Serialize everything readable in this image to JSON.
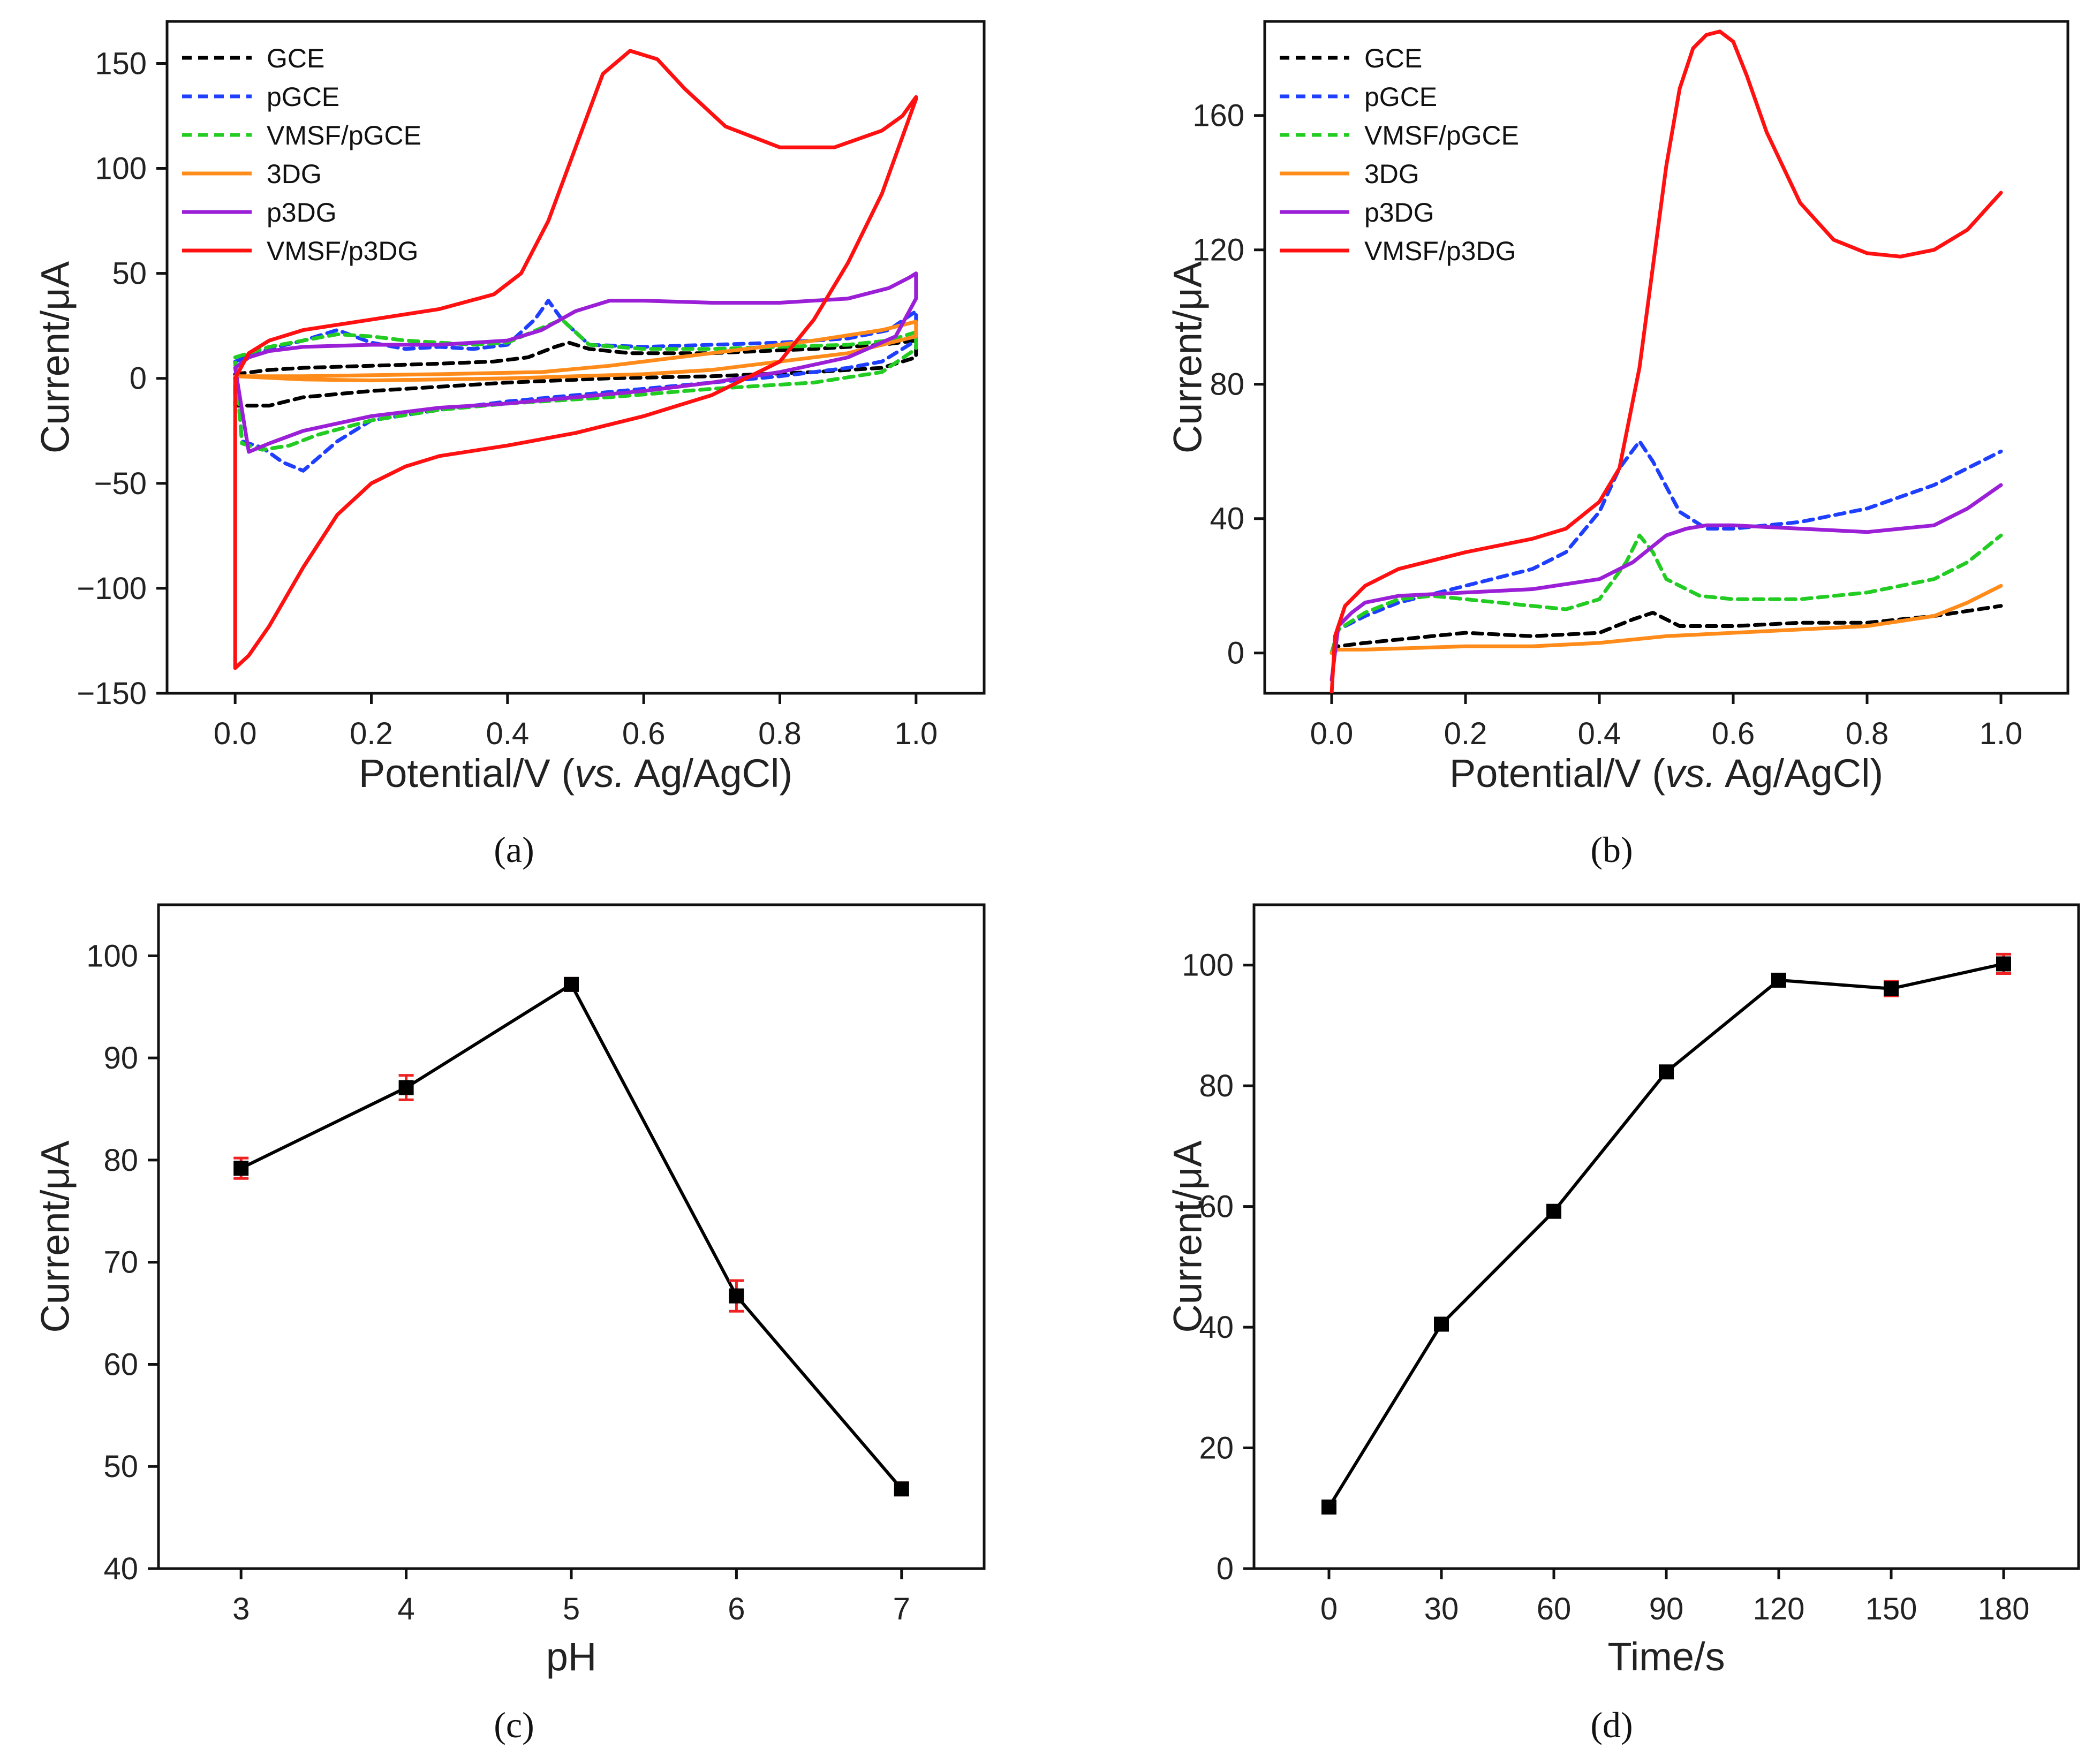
{
  "colors": {
    "GCE": "#000000",
    "pGCE": "#1f3fff",
    "VMSF/pGCE": "#22cc22",
    "3DG": "#ff8c1a",
    "p3DG": "#9a1fd6",
    "VMSF/p3DG": "#ff1111",
    "errbar": "#ee2222",
    "marker": "#000000"
  },
  "chart_data": [
    {
      "id": "a",
      "type": "line",
      "caption": "(a)",
      "xlabel_main": "Potential/V (",
      "xlabel_italic": "vs.",
      "xlabel_tail": " Ag/AgCl)",
      "ylabel": "Current/μA",
      "xlim": [
        -0.1,
        1.1
      ],
      "ylim": [
        -150,
        170
      ],
      "xticks": [
        {
          "v": 0,
          "label": "0.0"
        },
        {
          "v": 0.2,
          "label": "0.2"
        },
        {
          "v": 0.4,
          "label": "0.4"
        },
        {
          "v": 0.6,
          "label": "0.6"
        },
        {
          "v": 0.8,
          "label": "0.8"
        },
        {
          "v": 1,
          "label": "1.0"
        }
      ],
      "yticks": [
        {
          "v": -150,
          "label": "−150"
        },
        {
          "v": -100,
          "label": "−100"
        },
        {
          "v": -50,
          "label": "−50"
        },
        {
          "v": 0,
          "label": "0"
        },
        {
          "v": 50,
          "label": "50"
        },
        {
          "v": 100,
          "label": "100"
        },
        {
          "v": 150,
          "label": "150"
        }
      ],
      "legend_position": "top-left",
      "series": [
        {
          "name": "GCE",
          "dashed": true,
          "x": [
            0,
            0.05,
            0.1,
            0.2,
            0.3,
            0.38,
            0.43,
            0.47,
            0.49,
            0.52,
            0.58,
            0.7,
            0.85,
            0.95,
            1.0,
            1.0,
            0.95,
            0.85,
            0.7,
            0.55,
            0.4,
            0.3,
            0.2,
            0.1,
            0.05,
            0.0,
            0
          ],
          "y": [
            2,
            4,
            5,
            6,
            7,
            8,
            10,
            15,
            17,
            14,
            12,
            12,
            14,
            16,
            18,
            10,
            5,
            3,
            1,
            0,
            -2,
            -4,
            -6,
            -9,
            -13,
            -13,
            2
          ]
        },
        {
          "name": "pGCE",
          "dashed": true,
          "x": [
            0,
            0.05,
            0.1,
            0.15,
            0.2,
            0.25,
            0.3,
            0.35,
            0.4,
            0.44,
            0.46,
            0.48,
            0.52,
            0.6,
            0.7,
            0.8,
            0.9,
            0.96,
            1.0,
            1.0,
            0.95,
            0.9,
            0.8,
            0.7,
            0.6,
            0.5,
            0.4,
            0.3,
            0.2,
            0.15,
            0.1,
            0.07,
            0.04,
            0.01,
            0
          ],
          "y": [
            8,
            14,
            18,
            23,
            17,
            14,
            15,
            14,
            16,
            28,
            37,
            28,
            16,
            15,
            16,
            17,
            19,
            23,
            32,
            18,
            8,
            5,
            1,
            -2,
            -5,
            -8,
            -11,
            -15,
            -20,
            -30,
            -44,
            -40,
            -33,
            -30,
            8
          ]
        },
        {
          "name": "VMSF/pGCE",
          "dashed": true,
          "x": [
            0,
            0.05,
            0.1,
            0.15,
            0.2,
            0.25,
            0.3,
            0.35,
            0.4,
            0.45,
            0.48,
            0.52,
            0.6,
            0.7,
            0.8,
            0.9,
            0.96,
            1.0,
            1.0,
            0.95,
            0.85,
            0.7,
            0.55,
            0.4,
            0.3,
            0.2,
            0.12,
            0.08,
            0.04,
            0.01,
            0
          ],
          "y": [
            10,
            15,
            18,
            21,
            20,
            18,
            17,
            16,
            17,
            24,
            28,
            16,
            14,
            14,
            15,
            16,
            18,
            22,
            14,
            3,
            -2,
            -5,
            -9,
            -12,
            -15,
            -20,
            -27,
            -32,
            -34,
            -31,
            10
          ]
        },
        {
          "name": "3DG",
          "dashed": false,
          "x": [
            0,
            0.1,
            0.3,
            0.45,
            0.55,
            0.65,
            0.75,
            0.85,
            0.95,
            1.0,
            1.0,
            0.9,
            0.8,
            0.7,
            0.6,
            0.5,
            0.4,
            0.3,
            0.2,
            0.1,
            0
          ],
          "y": [
            1,
            1,
            2,
            3,
            6,
            10,
            14,
            18,
            23,
            27,
            20,
            12,
            8,
            4,
            2,
            1,
            0,
            -0.5,
            -1,
            -0.5,
            1
          ]
        },
        {
          "name": "p3DG",
          "dashed": false,
          "x": [
            0,
            0.02,
            0.05,
            0.1,
            0.2,
            0.3,
            0.4,
            0.45,
            0.5,
            0.55,
            0.6,
            0.7,
            0.8,
            0.9,
            0.96,
            0.99,
            1.0,
            1.0,
            0.97,
            0.9,
            0.8,
            0.7,
            0.6,
            0.5,
            0.4,
            0.3,
            0.2,
            0.1,
            0.05,
            0.02,
            0
          ],
          "y": [
            5,
            10,
            13,
            15,
            16,
            16,
            18,
            23,
            32,
            37,
            37,
            36,
            36,
            38,
            43,
            48,
            50,
            38,
            20,
            10,
            3,
            -2,
            -6,
            -9,
            -12,
            -14,
            -18,
            -25,
            -31,
            -35,
            5
          ]
        },
        {
          "name": "VMSF/p3DG",
          "dashed": false,
          "x": [
            0,
            0.02,
            0.05,
            0.1,
            0.2,
            0.3,
            0.38,
            0.42,
            0.46,
            0.5,
            0.54,
            0.58,
            0.62,
            0.66,
            0.72,
            0.8,
            0.88,
            0.95,
            0.98,
            1.0,
            1.0,
            0.95,
            0.9,
            0.85,
            0.8,
            0.7,
            0.6,
            0.5,
            0.4,
            0.3,
            0.25,
            0.2,
            0.15,
            0.1,
            0.05,
            0.02,
            0.0,
            0
          ],
          "y": [
            0,
            12,
            18,
            23,
            28,
            33,
            40,
            50,
            75,
            110,
            145,
            156,
            152,
            138,
            120,
            110,
            110,
            118,
            125,
            134,
            133,
            88,
            55,
            28,
            8,
            -8,
            -18,
            -26,
            -32,
            -37,
            -42,
            -50,
            -65,
            -90,
            -118,
            -132,
            -138,
            0
          ]
        }
      ]
    },
    {
      "id": "b",
      "type": "line",
      "caption": "(b)",
      "xlabel_main": "Potential/V (",
      "xlabel_italic": "vs.",
      "xlabel_tail": " Ag/AgCl)",
      "ylabel": "Current/μA",
      "xlim": [
        -0.1,
        1.1
      ],
      "ylim": [
        -12,
        188
      ],
      "xticks": [
        {
          "v": 0,
          "label": "0.0"
        },
        {
          "v": 0.2,
          "label": "0.2"
        },
        {
          "v": 0.4,
          "label": "0.4"
        },
        {
          "v": 0.6,
          "label": "0.6"
        },
        {
          "v": 0.8,
          "label": "0.8"
        },
        {
          "v": 1,
          "label": "1.0"
        }
      ],
      "yticks": [
        {
          "v": 0,
          "label": "0"
        },
        {
          "v": 40,
          "label": "40"
        },
        {
          "v": 80,
          "label": "80"
        },
        {
          "v": 120,
          "label": "120"
        },
        {
          "v": 160,
          "label": "160"
        }
      ],
      "legend_position": "top-left",
      "series": [
        {
          "name": "GCE",
          "dashed": true,
          "x": [
            0,
            0.01,
            0.05,
            0.1,
            0.2,
            0.3,
            0.4,
            0.45,
            0.48,
            0.52,
            0.6,
            0.7,
            0.8,
            0.9,
            1.0
          ],
          "y": [
            0,
            2,
            3,
            4,
            6,
            5,
            6,
            10,
            12,
            8,
            8,
            9,
            9,
            11,
            14
          ]
        },
        {
          "name": "pGCE",
          "dashed": true,
          "x": [
            0,
            0.01,
            0.05,
            0.1,
            0.2,
            0.3,
            0.35,
            0.4,
            0.43,
            0.46,
            0.48,
            0.52,
            0.56,
            0.6,
            0.7,
            0.8,
            0.9,
            1.0
          ],
          "y": [
            0,
            7,
            11,
            15,
            20,
            25,
            30,
            42,
            55,
            63,
            57,
            42,
            37,
            37,
            39,
            43,
            50,
            60
          ]
        },
        {
          "name": "VMSF/pGCE",
          "dashed": true,
          "x": [
            0,
            0.01,
            0.05,
            0.1,
            0.15,
            0.2,
            0.3,
            0.35,
            0.4,
            0.44,
            0.46,
            0.48,
            0.5,
            0.55,
            0.6,
            0.7,
            0.8,
            0.9,
            0.95,
            1.0
          ],
          "y": [
            0,
            7,
            12,
            16,
            17,
            16,
            14,
            13,
            16,
            27,
            35,
            30,
            22,
            17,
            16,
            16,
            18,
            22,
            27,
            35
          ]
        },
        {
          "name": "3DG",
          "dashed": false,
          "x": [
            0,
            0.01,
            0.05,
            0.2,
            0.3,
            0.4,
            0.45,
            0.5,
            0.6,
            0.7,
            0.8,
            0.9,
            0.95,
            1.0
          ],
          "y": [
            0,
            1,
            1,
            2,
            2,
            3,
            4,
            5,
            6,
            7,
            8,
            11,
            15,
            20
          ]
        },
        {
          "name": "p3DG",
          "dashed": false,
          "x": [
            0,
            0.01,
            0.03,
            0.05,
            0.1,
            0.2,
            0.3,
            0.4,
            0.45,
            0.5,
            0.53,
            0.56,
            0.6,
            0.7,
            0.8,
            0.9,
            0.95,
            1.0
          ],
          "y": [
            -8,
            8,
            12,
            15,
            17,
            18,
            19,
            22,
            27,
            35,
            37,
            38,
            38,
            37,
            36,
            38,
            43,
            50
          ]
        },
        {
          "name": "VMSF/p3DG",
          "dashed": false,
          "x": [
            0,
            0.005,
            0.02,
            0.05,
            0.1,
            0.2,
            0.3,
            0.35,
            0.4,
            0.43,
            0.46,
            0.48,
            0.5,
            0.52,
            0.54,
            0.56,
            0.58,
            0.6,
            0.62,
            0.65,
            0.7,
            0.75,
            0.8,
            0.85,
            0.9,
            0.95,
            1.0
          ],
          "y": [
            -12,
            5,
            14,
            20,
            25,
            30,
            34,
            37,
            45,
            55,
            85,
            115,
            145,
            168,
            180,
            184,
            185,
            182,
            172,
            155,
            134,
            123,
            119,
            118,
            120,
            126,
            137
          ]
        }
      ]
    },
    {
      "id": "c",
      "type": "line",
      "caption": "(c)",
      "xlabel": "pH",
      "ylabel": "Current/μA",
      "xlim": [
        2.5,
        7.5
      ],
      "ylim": [
        40,
        105
      ],
      "xticks": [
        {
          "v": 3,
          "label": "3"
        },
        {
          "v": 4,
          "label": "4"
        },
        {
          "v": 5,
          "label": "5"
        },
        {
          "v": 6,
          "label": "6"
        },
        {
          "v": 7,
          "label": "7"
        }
      ],
      "yticks": [
        {
          "v": 40,
          "label": "40"
        },
        {
          "v": 50,
          "label": "50"
        },
        {
          "v": 60,
          "label": "60"
        },
        {
          "v": 70,
          "label": "70"
        },
        {
          "v": 80,
          "label": "80"
        },
        {
          "v": 90,
          "label": "90"
        },
        {
          "v": 100,
          "label": "100"
        }
      ],
      "series": [
        {
          "name": "Current",
          "x": [
            3,
            4,
            5,
            6,
            7
          ],
          "y": [
            79.2,
            87.1,
            97.2,
            66.7,
            47.8
          ],
          "err": [
            1.0,
            1.2,
            0.6,
            1.5,
            0.6
          ]
        }
      ]
    },
    {
      "id": "d",
      "type": "line",
      "caption": "(d)",
      "xlabel": "Time/s",
      "ylabel": "Current/μA",
      "xlim": [
        -20,
        200
      ],
      "ylim": [
        0,
        110
      ],
      "xticks": [
        {
          "v": 0,
          "label": "0"
        },
        {
          "v": 30,
          "label": "30"
        },
        {
          "v": 60,
          "label": "60"
        },
        {
          "v": 90,
          "label": "90"
        },
        {
          "v": 120,
          "label": "120"
        },
        {
          "v": 150,
          "label": "150"
        },
        {
          "v": 180,
          "label": "180"
        }
      ],
      "yticks": [
        {
          "v": 0,
          "label": "0"
        },
        {
          "v": 20,
          "label": "20"
        },
        {
          "v": 40,
          "label": "40"
        },
        {
          "v": 60,
          "label": "60"
        },
        {
          "v": 80,
          "label": "80"
        },
        {
          "v": 100,
          "label": "100"
        }
      ],
      "series": [
        {
          "name": "Current",
          "x": [
            0,
            30,
            60,
            90,
            120,
            150,
            180
          ],
          "y": [
            10.2,
            40.5,
            59.2,
            82.3,
            97.5,
            96.1,
            100.2
          ],
          "err": [
            1.0,
            0.7,
            0.8,
            1.0,
            1.0,
            1.2,
            1.6
          ]
        }
      ]
    }
  ]
}
